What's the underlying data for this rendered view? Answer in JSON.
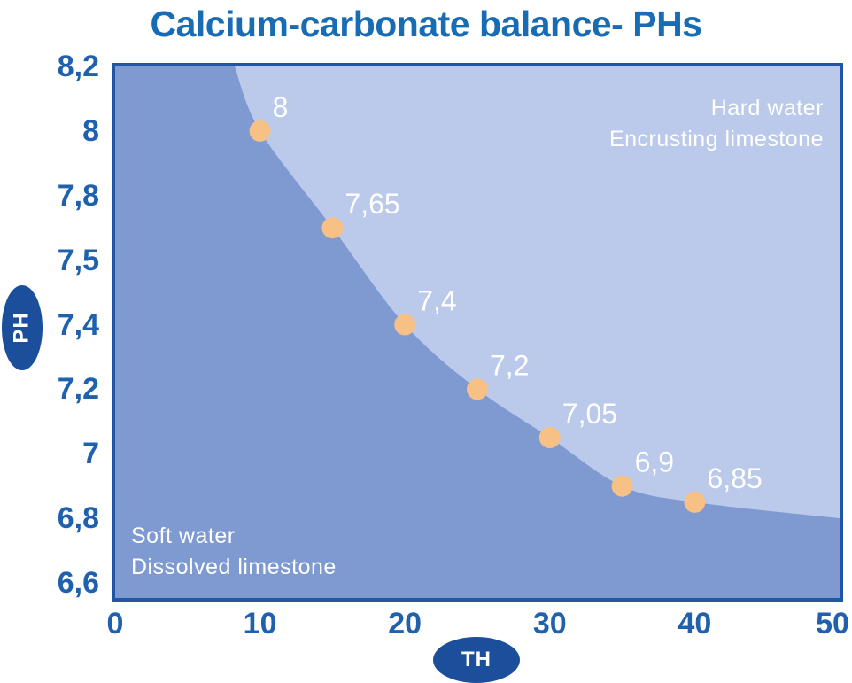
{
  "title": "Calcium-carbonate balance- PHs",
  "colors": {
    "title_text": "#176cb4",
    "axis_tick_text": "#2061ae",
    "plot_frame": "#2156a6",
    "soft_water_region": "#7f9ad0",
    "hard_water_region": "#bbc9eb",
    "data_point": "#f7c185",
    "data_point_label": "#ffffff",
    "region_label_text": "#ffffff",
    "axis_badge_fill": "#1b4f9c",
    "axis_badge_text": "#ffffff",
    "page_background": "#ffffff"
  },
  "y_axis": {
    "label": "PH",
    "ticks": [
      "8,2",
      "8",
      "7,8",
      "7,5",
      "7,4",
      "7,2",
      "7",
      "6,8",
      "6,6"
    ]
  },
  "x_axis": {
    "label": "TH",
    "ticks": [
      "0",
      "10",
      "20",
      "30",
      "40",
      "50"
    ]
  },
  "regions": {
    "hard": {
      "line1": "Hard water",
      "line2": "Encrusting limestone"
    },
    "soft": {
      "line1": "Soft water",
      "line2": "Dissolved limestone"
    }
  },
  "chart_data": {
    "type": "area",
    "title": "Calcium-carbonate balance- PHs",
    "xlabel": "TH",
    "ylabel": "PH",
    "xlim": [
      0,
      50
    ],
    "x_tick_values": [
      0,
      10,
      20,
      30,
      40,
      50
    ],
    "y_tick_values": [
      8.2,
      8.0,
      7.8,
      7.5,
      7.4,
      7.2,
      7.0,
      6.8,
      6.6
    ],
    "grid": false,
    "legend": false,
    "points": [
      {
        "th": 10,
        "ph": 8.0,
        "label": "8"
      },
      {
        "th": 15,
        "ph": 7.65,
        "label": "7,65"
      },
      {
        "th": 20,
        "ph": 7.4,
        "label": "7,4"
      },
      {
        "th": 25,
        "ph": 7.2,
        "label": "7,2"
      },
      {
        "th": 30,
        "ph": 7.05,
        "label": "7,05"
      },
      {
        "th": 35,
        "ph": 6.9,
        "label": "6,9"
      },
      {
        "th": 40,
        "ph": 6.85,
        "label": "6,85"
      }
    ],
    "curve_extension": {
      "start": {
        "th": 8.25,
        "ph": 8.2
      },
      "end": {
        "th": 50,
        "ph": 6.8
      }
    },
    "regions": [
      {
        "name": "Hard water - Encrusting limestone",
        "position": "above balance curve"
      },
      {
        "name": "Soft water - Dissolved limestone",
        "position": "below balance curve"
      }
    ]
  }
}
